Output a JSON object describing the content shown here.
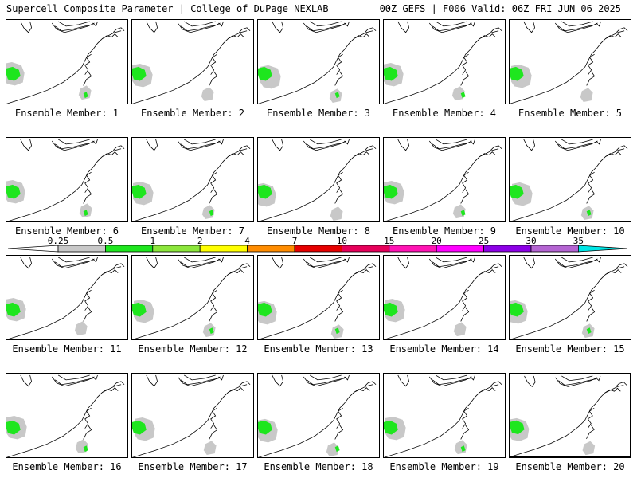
{
  "header": {
    "left": "Supercell Composite Parameter | College of DuPage NEXLAB",
    "right": "00Z GEFS | F006 Valid: 06Z FRI JUN 06 2025"
  },
  "colorbar": {
    "labels": [
      "0.25",
      "0.5",
      "1",
      "2",
      "4",
      "7",
      "10",
      "15",
      "20",
      "25",
      "30",
      "35"
    ],
    "colors": [
      "#c8c8c8",
      "#1ee61e",
      "#8ce63c",
      "#ffff00",
      "#ff8c00",
      "#e60000",
      "#e6005a",
      "#ff14b4",
      "#ff00ff",
      "#8c00e6",
      "#b464d2",
      "#00e6e6"
    ]
  },
  "members": [
    {
      "label": "Ensemble Member: 1"
    },
    {
      "label": "Ensemble Member: 2"
    },
    {
      "label": "Ensemble Member: 3"
    },
    {
      "label": "Ensemble Member: 4"
    },
    {
      "label": "Ensemble Member: 5"
    },
    {
      "label": "Ensemble Member: 6"
    },
    {
      "label": "Ensemble Member: 7"
    },
    {
      "label": "Ensemble Member: 8"
    },
    {
      "label": "Ensemble Member: 9"
    },
    {
      "label": "Ensemble Member: 10"
    },
    {
      "label": "Ensemble Member: 11"
    },
    {
      "label": "Ensemble Member: 12"
    },
    {
      "label": "Ensemble Member: 13"
    },
    {
      "label": "Ensemble Member: 14"
    },
    {
      "label": "Ensemble Member: 15"
    },
    {
      "label": "Ensemble Member: 16"
    },
    {
      "label": "Ensemble Member: 17"
    },
    {
      "label": "Ensemble Member: 18"
    },
    {
      "label": "Ensemble Member: 19"
    },
    {
      "label": "Ensemble Member: 20"
    }
  ]
}
